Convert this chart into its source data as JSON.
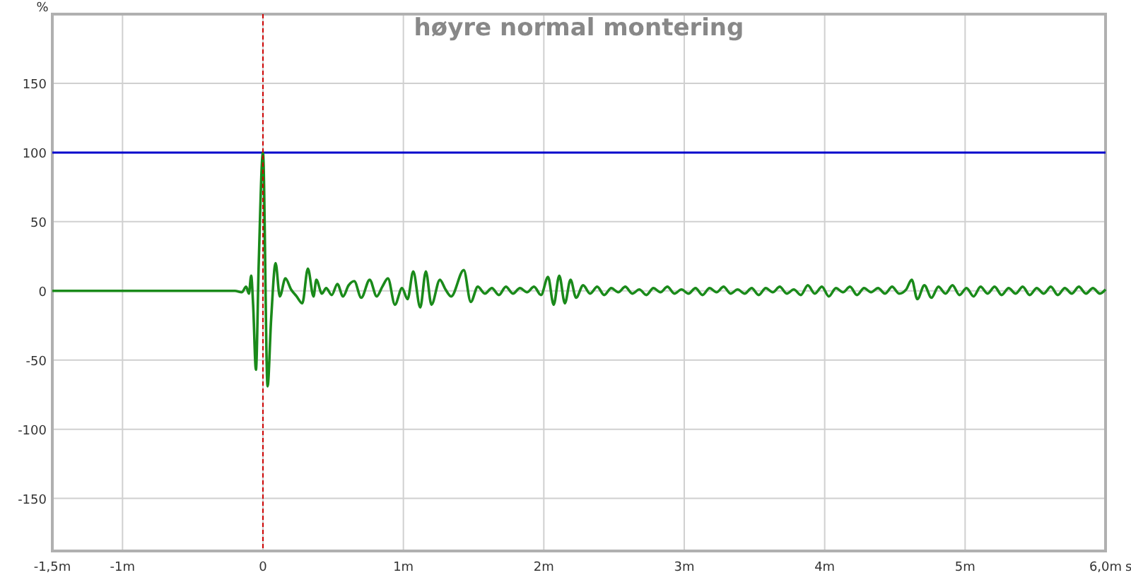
{
  "chart_data": {
    "type": "line",
    "title": "høyre normal montering",
    "xlabel": "s",
    "ylabel": "%",
    "xlim": [
      -1.5,
      6
    ],
    "xticks": [
      {
        "value": -1.5,
        "label": "-1,5m"
      },
      {
        "value": -1,
        "label": "-1m"
      },
      0,
      {
        "value": 1,
        "label": "1m"
      },
      {
        "value": 2,
        "label": "2m"
      },
      {
        "value": 3,
        "label": "3m"
      },
      {
        "value": 4,
        "label": "4m"
      },
      {
        "value": 5,
        "label": "5m"
      },
      {
        "value": 6,
        "label": "6,0m"
      }
    ],
    "ylim": [
      -188,
      200
    ],
    "yticks": [
      -150,
      -100,
      -50,
      0,
      50,
      100,
      150
    ],
    "grid": true,
    "ref_lines": [
      {
        "axis": "y",
        "value": 100,
        "color": "#0000cc",
        "line_style": "solid"
      },
      {
        "axis": "x",
        "value": 0,
        "color": "#cc0000",
        "line_style": "dashed"
      }
    ],
    "series": [
      {
        "color": "#1a8a1a",
        "x": [
          -1.5,
          -0.3,
          -0.2,
          -0.15,
          -0.12,
          -0.1,
          -0.084,
          -0.07,
          -0.05,
          -0.03,
          0,
          0.033,
          0.058,
          0.09,
          0.12,
          0.16,
          0.2,
          0.24,
          0.28,
          0.32,
          0.36,
          0.38,
          0.42,
          0.45,
          0.49,
          0.53,
          0.57,
          0.61,
          0.65,
          0.7,
          0.76,
          0.81,
          0.85,
          0.89,
          0.94,
          0.99,
          1.03,
          1.07,
          1.12,
          1.16,
          1.2,
          1.26,
          1.3,
          1.34,
          1.43,
          1.48,
          1.53,
          1.58,
          1.63,
          1.68,
          1.73,
          1.78,
          1.83,
          1.88,
          1.93,
          1.98,
          2.03,
          2.07,
          2.11,
          2.15,
          2.19,
          2.23,
          2.28,
          2.33,
          2.38,
          2.43,
          2.48,
          2.53,
          2.58,
          2.63,
          2.68,
          2.73,
          2.78,
          2.83,
          2.88,
          2.93,
          2.98,
          3.03,
          3.08,
          3.13,
          3.18,
          3.23,
          3.28,
          3.33,
          3.38,
          3.43,
          3.48,
          3.53,
          3.58,
          3.63,
          3.68,
          3.73,
          3.78,
          3.83,
          3.88,
          3.93,
          3.98,
          4.03,
          4.08,
          4.13,
          4.18,
          4.23,
          4.28,
          4.33,
          4.38,
          4.43,
          4.48,
          4.53,
          4.58,
          4.62,
          4.66,
          4.71,
          4.76,
          4.81,
          4.86,
          4.91,
          4.96,
          5.01,
          5.06,
          5.11,
          5.16,
          5.21,
          5.26,
          5.31,
          5.36,
          5.41,
          5.46,
          5.51,
          5.56,
          5.61,
          5.66,
          5.71,
          5.76,
          5.81,
          5.86,
          5.91,
          5.96,
          6.0
        ],
        "values": [
          0,
          0,
          0,
          -1,
          3,
          -2,
          11,
          -10,
          -57,
          20,
          100,
          -69,
          -21,
          20,
          -4,
          9,
          1,
          -4,
          -9,
          16,
          -4,
          8,
          -2,
          2,
          -3,
          5,
          -4,
          4,
          7,
          -5,
          8,
          -4,
          3,
          9,
          -10,
          2,
          -6,
          14,
          -12,
          14,
          -10,
          8,
          1,
          -4,
          15,
          -8,
          3,
          -2,
          2,
          -3,
          3,
          -2,
          2,
          -1,
          3,
          -3,
          10,
          -10,
          11,
          -9,
          8,
          -5,
          4,
          -2,
          3,
          -3,
          2,
          -1,
          3,
          -2,
          1,
          -3,
          2,
          -1,
          3,
          -2,
          1,
          -2,
          2,
          -3,
          2,
          -1,
          3,
          -2,
          1,
          -2,
          2,
          -3,
          2,
          -1,
          3,
          -2,
          1,
          -3,
          4,
          -2,
          3,
          -4,
          2,
          -1,
          3,
          -3,
          2,
          -1,
          2,
          -2,
          3,
          -2,
          1,
          8,
          -6,
          4,
          -5,
          3,
          -2,
          4,
          -3,
          2,
          -4,
          3,
          -2,
          3,
          -3,
          2,
          -2,
          3,
          -3,
          2,
          -2,
          3,
          -3,
          2,
          -2,
          3,
          -2,
          2,
          -2,
          1
        ]
      }
    ]
  }
}
